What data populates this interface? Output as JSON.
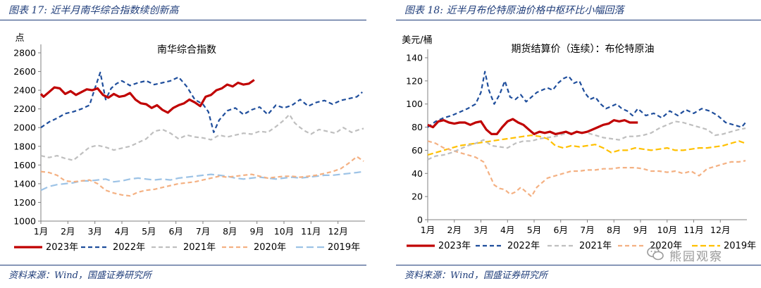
{
  "panels": [
    {
      "figure_label": "图表 17:",
      "figure_title": "近半月南华综合指数续创新高",
      "source": "资料来源：Wind，国盛证券研究所"
    },
    {
      "figure_label": "图表 18:",
      "figure_title": "近半月布伦特原油价格中枢环比小幅回落",
      "source": "资料来源：Wind，国盛证券研究所"
    }
  ],
  "watermark": "熊园观察",
  "chart_data": [
    {
      "type": "line",
      "title": "南华综合指数",
      "ylabel": "点",
      "ylim": [
        1000,
        2800
      ],
      "yticks": [
        1000,
        1200,
        1400,
        1600,
        1800,
        2000,
        2200,
        2400,
        2600,
        2800
      ],
      "xlim": [
        1,
        13
      ],
      "xticks": [
        "1月",
        "2月",
        "3月",
        "4月",
        "5月",
        "6月",
        "7月",
        "8月",
        "9月",
        "10月",
        "11月",
        "12月"
      ],
      "legend_position": "bottom",
      "grid": false,
      "series": [
        {
          "name": "2023年",
          "color": "#c00000",
          "dash": "solid",
          "x": [
            1,
            1.1,
            1.3,
            1.5,
            1.7,
            1.9,
            2.1,
            2.3,
            2.5,
            2.7,
            2.9,
            3.1,
            3.3,
            3.5,
            3.7,
            3.9,
            4.1,
            4.3,
            4.5,
            4.7,
            4.9,
            5.1,
            5.3,
            5.5,
            5.7,
            5.9,
            6.1,
            6.3,
            6.5,
            6.7,
            6.9,
            7.1,
            7.3,
            7.5,
            7.7,
            7.9,
            8.1,
            8.3,
            8.5,
            8.7,
            8.9
          ],
          "y": [
            2360,
            2330,
            2380,
            2430,
            2420,
            2360,
            2390,
            2350,
            2380,
            2410,
            2400,
            2420,
            2350,
            2320,
            2360,
            2330,
            2340,
            2370,
            2300,
            2260,
            2250,
            2210,
            2240,
            2190,
            2160,
            2210,
            2240,
            2260,
            2300,
            2270,
            2230,
            2330,
            2350,
            2400,
            2420,
            2460,
            2440,
            2480,
            2460,
            2470,
            2510
          ]
        },
        {
          "name": "2022年",
          "color": "#1f4e9c",
          "dash": "6,4",
          "x": [
            1,
            1.3,
            1.6,
            1.9,
            2.2,
            2.5,
            2.8,
            3.0,
            3.2,
            3.4,
            3.6,
            3.8,
            4.0,
            4.3,
            4.6,
            4.9,
            5.2,
            5.5,
            5.8,
            6.1,
            6.4,
            6.7,
            7.0,
            7.2,
            7.4,
            7.6,
            7.9,
            8.2,
            8.5,
            8.8,
            9.1,
            9.4,
            9.7,
            10.0,
            10.3,
            10.6,
            10.9,
            11.2,
            11.5,
            11.8,
            12.1,
            12.4,
            12.7,
            12.9
          ],
          "y": [
            2000,
            2060,
            2100,
            2150,
            2170,
            2200,
            2240,
            2420,
            2590,
            2300,
            2420,
            2470,
            2500,
            2450,
            2480,
            2500,
            2460,
            2480,
            2500,
            2540,
            2440,
            2300,
            2250,
            2170,
            1950,
            2080,
            2180,
            2210,
            2140,
            2190,
            2220,
            2140,
            2240,
            2210,
            2240,
            2300,
            2230,
            2270,
            2290,
            2250,
            2290,
            2310,
            2330,
            2380
          ]
        },
        {
          "name": "2021年",
          "color": "#bfbfbf",
          "dash": "6,4",
          "x": [
            1,
            1.3,
            1.6,
            1.9,
            2.2,
            2.5,
            2.8,
            3.1,
            3.4,
            3.7,
            4.0,
            4.3,
            4.6,
            4.9,
            5.2,
            5.5,
            5.8,
            6.1,
            6.4,
            6.7,
            7.0,
            7.3,
            7.6,
            7.9,
            8.2,
            8.5,
            8.8,
            9.1,
            9.4,
            9.7,
            10.0,
            10.2,
            10.4,
            10.6,
            10.8,
            11.0,
            11.3,
            11.6,
            11.9,
            12.2,
            12.5,
            12.8,
            12.95
          ],
          "y": [
            1700,
            1680,
            1700,
            1670,
            1650,
            1720,
            1790,
            1810,
            1790,
            1760,
            1780,
            1800,
            1840,
            1880,
            1960,
            1980,
            1940,
            1880,
            1920,
            1900,
            1890,
            1870,
            1920,
            1900,
            1920,
            1940,
            1930,
            1960,
            1950,
            2010,
            2080,
            2140,
            2050,
            2000,
            1960,
            1930,
            1980,
            1960,
            1940,
            2000,
            1950,
            1980,
            1990
          ]
        },
        {
          "name": "2020年",
          "color": "#f4b183",
          "dash": "6,4",
          "x": [
            1,
            1.3,
            1.6,
            1.9,
            2.2,
            2.5,
            2.8,
            3.1,
            3.4,
            3.7,
            4.0,
            4.3,
            4.6,
            4.9,
            5.2,
            5.5,
            5.8,
            6.1,
            6.4,
            6.7,
            7.0,
            7.3,
            7.6,
            7.9,
            8.2,
            8.5,
            8.8,
            9.1,
            9.4,
            9.7,
            10.0,
            10.3,
            10.6,
            10.9,
            11.2,
            11.5,
            11.8,
            12.1,
            12.4,
            12.7,
            12.95
          ],
          "y": [
            1530,
            1520,
            1490,
            1430,
            1420,
            1430,
            1440,
            1400,
            1330,
            1300,
            1280,
            1270,
            1310,
            1330,
            1340,
            1360,
            1380,
            1400,
            1410,
            1420,
            1440,
            1460,
            1480,
            1470,
            1480,
            1490,
            1500,
            1480,
            1460,
            1470,
            1480,
            1480,
            1470,
            1480,
            1490,
            1510,
            1530,
            1560,
            1620,
            1690,
            1640
          ]
        },
        {
          "name": "2019年",
          "color": "#9dc3e6",
          "dash": "10,5",
          "x": [
            1,
            1.3,
            1.6,
            1.9,
            2.2,
            2.5,
            2.8,
            3.1,
            3.4,
            3.7,
            4.0,
            4.3,
            4.6,
            4.9,
            5.2,
            5.5,
            5.8,
            6.1,
            6.4,
            6.7,
            7.0,
            7.3,
            7.6,
            7.9,
            8.2,
            8.5,
            8.8,
            9.1,
            9.4,
            9.7,
            10.0,
            10.3,
            10.6,
            10.9,
            11.2,
            11.5,
            11.8,
            12.1,
            12.4,
            12.7,
            12.95
          ],
          "y": [
            1330,
            1370,
            1390,
            1400,
            1410,
            1430,
            1430,
            1440,
            1450,
            1420,
            1430,
            1450,
            1460,
            1450,
            1440,
            1450,
            1440,
            1460,
            1470,
            1480,
            1490,
            1500,
            1490,
            1480,
            1460,
            1450,
            1460,
            1470,
            1460,
            1450,
            1460,
            1470,
            1460,
            1470,
            1480,
            1490,
            1490,
            1500,
            1510,
            1520,
            1530
          ]
        }
      ]
    },
    {
      "type": "line",
      "title": "期货结算价（连续）：布伦特原油",
      "ylabel": "美元/桶",
      "ylim": [
        0,
        140
      ],
      "yticks": [
        0,
        20,
        40,
        60,
        80,
        100,
        120,
        140
      ],
      "xlim": [
        1,
        13
      ],
      "xticks": [
        "1月",
        "2月",
        "3月",
        "4月",
        "5月",
        "6月",
        "7月",
        "8月",
        "9月",
        "10月",
        "11月",
        "12月"
      ],
      "legend_position": "bottom",
      "grid": false,
      "series": [
        {
          "name": "2023年",
          "color": "#c00000",
          "dash": "solid",
          "x": [
            1,
            1.2,
            1.4,
            1.6,
            1.8,
            2.0,
            2.2,
            2.4,
            2.6,
            2.8,
            3.0,
            3.2,
            3.4,
            3.6,
            3.8,
            4.0,
            4.2,
            4.4,
            4.6,
            4.8,
            5.0,
            5.2,
            5.4,
            5.6,
            5.8,
            6.0,
            6.2,
            6.4,
            6.6,
            6.8,
            7.0,
            7.2,
            7.4,
            7.6,
            7.8,
            8.0,
            8.2,
            8.4,
            8.6,
            8.9
          ],
          "y": [
            82,
            80,
            85,
            86,
            84,
            83,
            84,
            84,
            82,
            84,
            85,
            78,
            74,
            74,
            80,
            85,
            87,
            84,
            82,
            78,
            74,
            76,
            75,
            76,
            74,
            75,
            76,
            74,
            76,
            75,
            76,
            78,
            80,
            82,
            83,
            86,
            85,
            86,
            84,
            84
          ]
        },
        {
          "name": "2022年",
          "color": "#1f4e9c",
          "dash": "6,4",
          "x": [
            1,
            1.3,
            1.6,
            1.9,
            2.2,
            2.5,
            2.8,
            3.0,
            3.15,
            3.3,
            3.5,
            3.7,
            3.9,
            4.1,
            4.3,
            4.5,
            4.7,
            4.9,
            5.1,
            5.3,
            5.5,
            5.7,
            5.9,
            6.1,
            6.3,
            6.5,
            6.7,
            6.9,
            7.1,
            7.3,
            7.5,
            7.7,
            7.9,
            8.1,
            8.3,
            8.5,
            8.7,
            8.9,
            9.2,
            9.5,
            9.8,
            10.1,
            10.4,
            10.7,
            11.0,
            11.3,
            11.6,
            11.9,
            12.2,
            12.5,
            12.8,
            12.95
          ],
          "y": [
            80,
            85,
            88,
            90,
            93,
            96,
            100,
            110,
            128,
            112,
            100,
            108,
            120,
            106,
            104,
            108,
            102,
            106,
            110,
            112,
            114,
            112,
            118,
            122,
            124,
            118,
            120,
            110,
            104,
            106,
            100,
            96,
            98,
            100,
            96,
            94,
            90,
            96,
            90,
            92,
            88,
            94,
            90,
            95,
            92,
            96,
            94,
            90,
            84,
            82,
            80,
            84
          ]
        },
        {
          "name": "2021年",
          "color": "#bfbfbf",
          "dash": "6,4",
          "x": [
            1,
            1.3,
            1.6,
            1.9,
            2.2,
            2.5,
            2.8,
            3.1,
            3.4,
            3.7,
            4.0,
            4.3,
            4.6,
            4.9,
            5.2,
            5.5,
            5.8,
            6.1,
            6.4,
            6.7,
            7.0,
            7.3,
            7.6,
            7.9,
            8.2,
            8.5,
            8.8,
            9.1,
            9.4,
            9.7,
            10.0,
            10.3,
            10.6,
            10.9,
            11.2,
            11.5,
            11.8,
            12.1,
            12.4,
            12.7,
            12.95
          ],
          "y": [
            52,
            55,
            56,
            58,
            61,
            64,
            66,
            69,
            64,
            63,
            62,
            66,
            68,
            68,
            70,
            71,
            72,
            74,
            75,
            76,
            75,
            73,
            71,
            70,
            69,
            72,
            72,
            73,
            75,
            79,
            82,
            85,
            84,
            82,
            80,
            78,
            73,
            74,
            76,
            78,
            79
          ]
        },
        {
          "name": "2020年",
          "color": "#f4b183",
          "dash": "6,4",
          "x": [
            1,
            1.3,
            1.6,
            1.9,
            2.2,
            2.5,
            2.8,
            3.1,
            3.3,
            3.5,
            3.7,
            3.9,
            4.1,
            4.3,
            4.5,
            4.7,
            4.9,
            5.1,
            5.3,
            5.5,
            5.8,
            6.1,
            6.4,
            6.7,
            7.0,
            7.3,
            7.6,
            7.9,
            8.2,
            8.5,
            8.8,
            9.1,
            9.4,
            9.7,
            10.0,
            10.3,
            10.6,
            10.9,
            11.2,
            11.5,
            11.8,
            12.1,
            12.4,
            12.7,
            12.95
          ],
          "y": [
            68,
            66,
            62,
            60,
            58,
            56,
            54,
            50,
            40,
            30,
            27,
            26,
            22,
            24,
            28,
            24,
            20,
            28,
            32,
            36,
            38,
            40,
            42,
            42,
            43,
            43,
            44,
            44,
            45,
            45,
            45,
            44,
            42,
            42,
            41,
            42,
            40,
            42,
            38,
            44,
            46,
            48,
            50,
            50,
            51
          ]
        },
        {
          "name": "2019年",
          "color": "#ffc000",
          "dash": "8,4",
          "x": [
            1,
            1.3,
            1.6,
            1.9,
            2.2,
            2.5,
            2.8,
            3.1,
            3.4,
            3.7,
            4.0,
            4.3,
            4.6,
            4.9,
            5.2,
            5.5,
            5.8,
            6.1,
            6.4,
            6.7,
            7.0,
            7.3,
            7.6,
            7.9,
            8.2,
            8.5,
            8.8,
            9.1,
            9.4,
            9.7,
            10.0,
            10.3,
            10.6,
            10.9,
            11.2,
            11.5,
            11.8,
            12.1,
            12.4,
            12.7,
            12.95
          ],
          "y": [
            56,
            58,
            60,
            62,
            64,
            65,
            66,
            67,
            68,
            69,
            70,
            71,
            72,
            73,
            72,
            70,
            64,
            62,
            64,
            63,
            64,
            65,
            62,
            58,
            60,
            60,
            62,
            61,
            60,
            61,
            62,
            60,
            60,
            61,
            62,
            62,
            63,
            64,
            66,
            68,
            66
          ]
        }
      ]
    }
  ]
}
